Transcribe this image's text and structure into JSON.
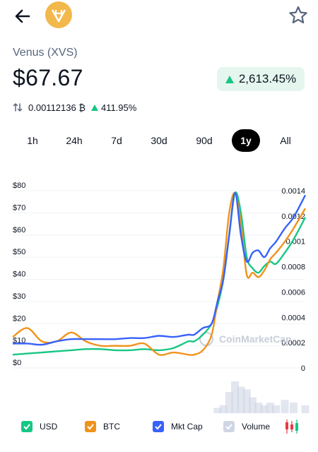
{
  "coin": {
    "name": "Venus (XVS)",
    "price": "$67.67",
    "change_pct": "2,613.45%"
  },
  "btc": {
    "price": "0.00112136 ₿",
    "change_pct": "411.95%"
  },
  "timeframes": [
    "1h",
    "24h",
    "7d",
    "30d",
    "90d",
    "1y",
    "All"
  ],
  "active_timeframe": "1y",
  "chart_data": {
    "type": "line",
    "left_axis_ticks": [
      "$80",
      "$70",
      "$60",
      "$50",
      "$40",
      "$30",
      "$20",
      "$10",
      "$0"
    ],
    "right_axis_ticks": [
      "0.0014",
      "0.0012",
      "0.001",
      "0.0008",
      "0.0006",
      "0.0004",
      "0.0002",
      "0"
    ],
    "watermark": "CoinMarketCap",
    "x": [
      0,
      0.05,
      0.1,
      0.15,
      0.2,
      0.25,
      0.3,
      0.35,
      0.4,
      0.45,
      0.5,
      0.55,
      0.6,
      0.62,
      0.65,
      0.68,
      0.7,
      0.72,
      0.74,
      0.76,
      0.78,
      0.8,
      0.82,
      0.84,
      0.86,
      0.88,
      0.9,
      0.93,
      0.96,
      1.0
    ],
    "series": [
      {
        "name": "USD",
        "color": "#16c784",
        "axis": "left",
        "values": [
          6,
          6.5,
          7,
          7.5,
          8,
          8.5,
          8.5,
          8,
          8,
          8.5,
          8,
          9,
          12,
          12,
          15,
          20,
          28,
          40,
          60,
          79,
          70,
          50,
          45,
          43,
          46,
          48,
          47,
          52,
          58,
          68
        ]
      },
      {
        "name": "BTC",
        "color": "#f0931b",
        "axis": "left",
        "values": [
          14,
          18,
          12,
          12,
          16,
          12,
          10,
          10,
          10,
          11,
          6,
          7,
          6,
          6,
          8,
          15,
          30,
          45,
          70,
          79,
          65,
          42,
          43,
          41,
          44,
          49,
          52,
          57,
          63,
          72
        ]
      },
      {
        "name": "Mkt Cap",
        "color": "#3861fb",
        "axis": "left",
        "values": [
          11,
          11,
          10.5,
          12,
          13,
          13,
          13,
          13,
          13.5,
          13.5,
          14.5,
          14,
          15,
          15,
          18,
          20,
          30,
          40,
          60,
          79,
          60,
          48,
          52,
          53,
          50,
          54,
          57,
          63,
          68,
          78
        ]
      },
      {
        "name": "Volume",
        "color": "#cfd6e4",
        "axis": "left",
        "type": "bar",
        "values": [
          0,
          0,
          0,
          0,
          0,
          0,
          0,
          0,
          0,
          0,
          0,
          0,
          0,
          0,
          0,
          0,
          2,
          3,
          8,
          12,
          10,
          9,
          6,
          4,
          3,
          4,
          3,
          5,
          4,
          3
        ]
      }
    ],
    "ylim": [
      0,
      80
    ],
    "grid": true
  },
  "legend": [
    {
      "label": "USD",
      "color": "#16c784"
    },
    {
      "label": "BTC",
      "color": "#f0931b"
    },
    {
      "label": "Mkt Cap",
      "color": "#3861fb"
    },
    {
      "label": "Volume",
      "color": "#cfd6e4"
    }
  ],
  "icons": {
    "back": "arrow-left-icon",
    "logo": "venus-logo-icon",
    "star": "star-icon",
    "swap": "swap-icon",
    "candles": "candlestick-icon"
  }
}
